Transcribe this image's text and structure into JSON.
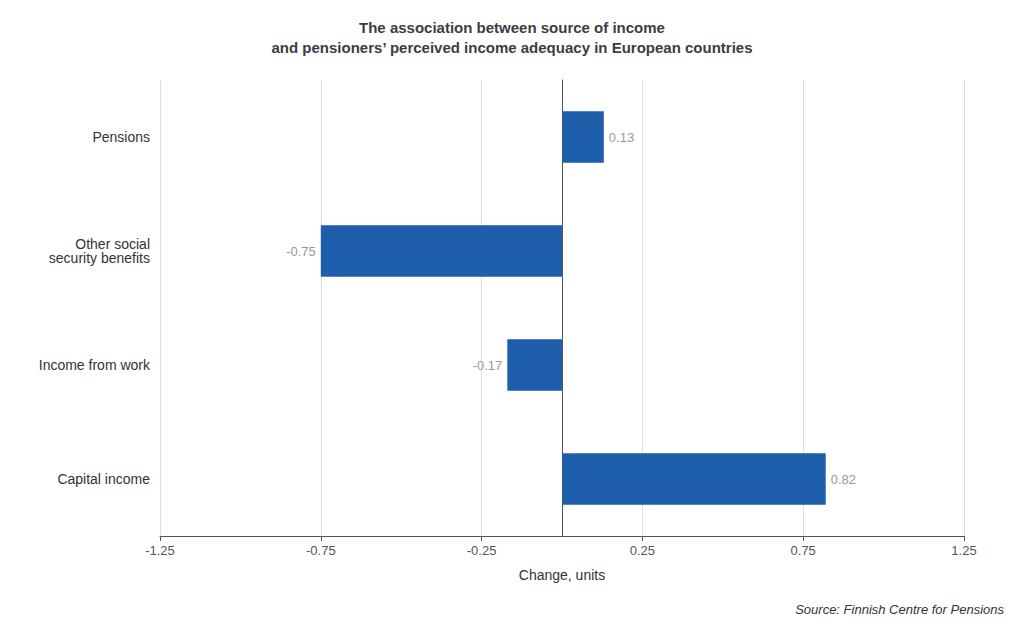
{
  "chart_data": {
    "type": "bar",
    "orientation": "horizontal",
    "title": "The association between source of income\nand pensioners’ perceived income adequacy in European countries",
    "categories": [
      "Pensions",
      "Other social\nsecurity benefits",
      "Income from work",
      "Capital income"
    ],
    "values": [
      0.13,
      -0.75,
      -0.17,
      0.82
    ],
    "color": "#1F5EAB",
    "xlabel": "Change, units",
    "xlim": [
      -1.25,
      1.25
    ],
    "xticks": [
      -1.25,
      -0.75,
      -0.25,
      0.25,
      0.75,
      1.25
    ],
    "grid": true,
    "data_labels": true,
    "annotations": [
      "Source: Finnish Centre for Pensions"
    ]
  }
}
